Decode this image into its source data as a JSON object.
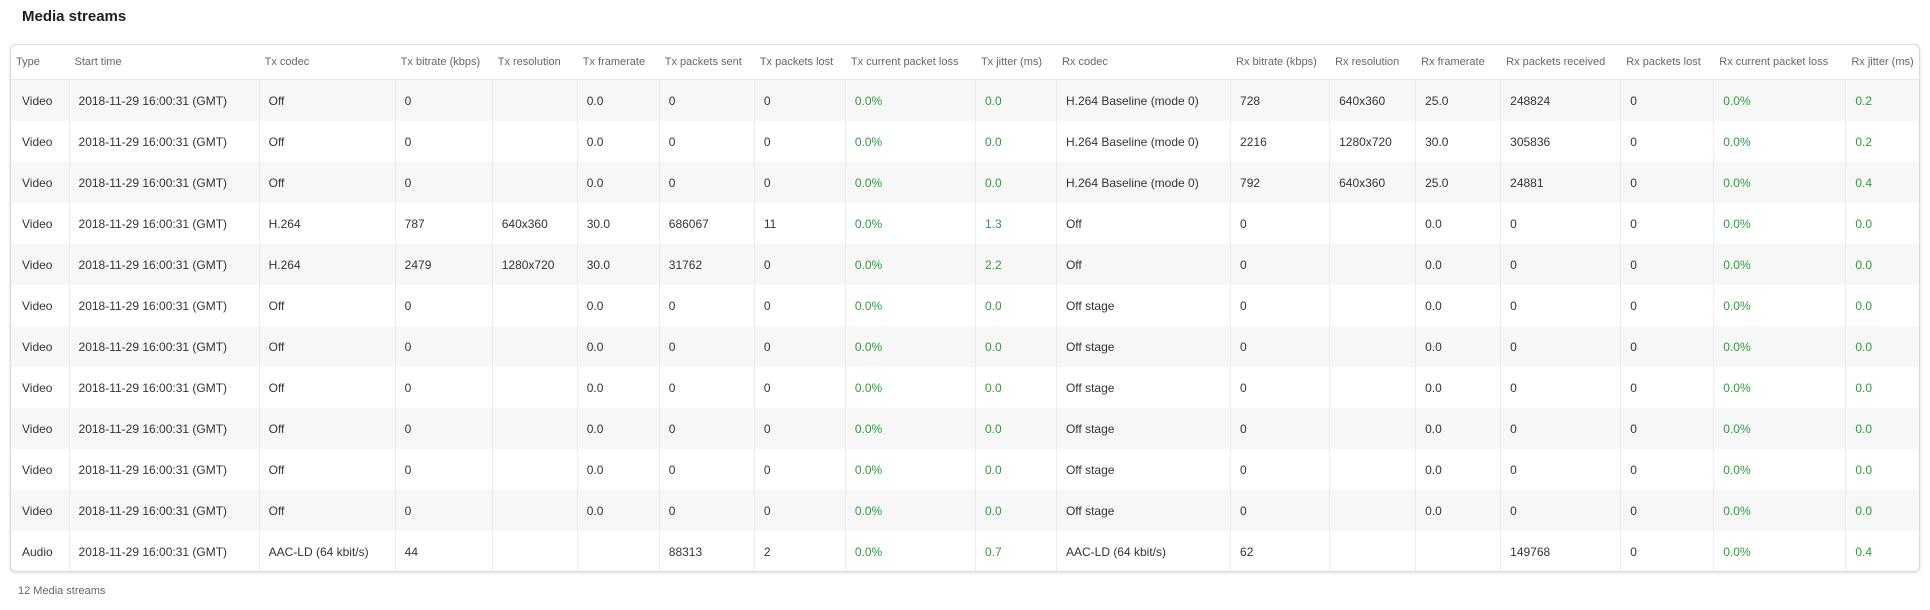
{
  "title": "Media streams",
  "footer": "12 Media streams",
  "colors": {
    "green_value": "#2e9b3e",
    "row_stripe": "#f7f7f7",
    "header_text": "#666666"
  },
  "columns": [
    "Type",
    "Start time",
    "Tx codec",
    "Tx bitrate (kbps)",
    "Tx resolution",
    "Tx framerate",
    "Tx packets sent",
    "Tx packets lost",
    "Tx current packet loss",
    "Tx jitter (ms)",
    "Rx codec",
    "Rx bitrate (kbps)",
    "Rx resolution",
    "Rx framerate",
    "Rx packets received",
    "Rx packets lost",
    "Rx current packet loss",
    "Rx jitter (ms)"
  ],
  "green_columns": [
    8,
    9,
    16,
    17
  ],
  "rows": [
    [
      "Video",
      "2018-11-29 16:00:31 (GMT)",
      "Off",
      "0",
      "",
      "0.0",
      "0",
      "0",
      "0.0%",
      "0.0",
      "H.264 Baseline (mode 0)",
      "728",
      "640x360",
      "25.0",
      "248824",
      "0",
      "0.0%",
      "0.2"
    ],
    [
      "Video",
      "2018-11-29 16:00:31 (GMT)",
      "Off",
      "0",
      "",
      "0.0",
      "0",
      "0",
      "0.0%",
      "0.0",
      "H.264 Baseline (mode 0)",
      "2216",
      "1280x720",
      "30.0",
      "305836",
      "0",
      "0.0%",
      "0.2"
    ],
    [
      "Video",
      "2018-11-29 16:00:31 (GMT)",
      "Off",
      "0",
      "",
      "0.0",
      "0",
      "0",
      "0.0%",
      "0.0",
      "H.264 Baseline (mode 0)",
      "792",
      "640x360",
      "25.0",
      "24881",
      "0",
      "0.0%",
      "0.4"
    ],
    [
      "Video",
      "2018-11-29 16:00:31 (GMT)",
      "H.264",
      "787",
      "640x360",
      "30.0",
      "686067",
      "11",
      "0.0%",
      "1.3",
      "Off",
      "0",
      "",
      "0.0",
      "0",
      "0",
      "0.0%",
      "0.0"
    ],
    [
      "Video",
      "2018-11-29 16:00:31 (GMT)",
      "H.264",
      "2479",
      "1280x720",
      "30.0",
      "31762",
      "0",
      "0.0%",
      "2.2",
      "Off",
      "0",
      "",
      "0.0",
      "0",
      "0",
      "0.0%",
      "0.0"
    ],
    [
      "Video",
      "2018-11-29 16:00:31 (GMT)",
      "Off",
      "0",
      "",
      "0.0",
      "0",
      "0",
      "0.0%",
      "0.0",
      "Off stage",
      "0",
      "",
      "0.0",
      "0",
      "0",
      "0.0%",
      "0.0"
    ],
    [
      "Video",
      "2018-11-29 16:00:31 (GMT)",
      "Off",
      "0",
      "",
      "0.0",
      "0",
      "0",
      "0.0%",
      "0.0",
      "Off stage",
      "0",
      "",
      "0.0",
      "0",
      "0",
      "0.0%",
      "0.0"
    ],
    [
      "Video",
      "2018-11-29 16:00:31 (GMT)",
      "Off",
      "0",
      "",
      "0.0",
      "0",
      "0",
      "0.0%",
      "0.0",
      "Off stage",
      "0",
      "",
      "0.0",
      "0",
      "0",
      "0.0%",
      "0.0"
    ],
    [
      "Video",
      "2018-11-29 16:00:31 (GMT)",
      "Off",
      "0",
      "",
      "0.0",
      "0",
      "0",
      "0.0%",
      "0.0",
      "Off stage",
      "0",
      "",
      "0.0",
      "0",
      "0",
      "0.0%",
      "0.0"
    ],
    [
      "Video",
      "2018-11-29 16:00:31 (GMT)",
      "Off",
      "0",
      "",
      "0.0",
      "0",
      "0",
      "0.0%",
      "0.0",
      "Off stage",
      "0",
      "",
      "0.0",
      "0",
      "0",
      "0.0%",
      "0.0"
    ],
    [
      "Video",
      "2018-11-29 16:00:31 (GMT)",
      "Off",
      "0",
      "",
      "0.0",
      "0",
      "0",
      "0.0%",
      "0.0",
      "Off stage",
      "0",
      "",
      "0.0",
      "0",
      "0",
      "0.0%",
      "0.0"
    ],
    [
      "Audio",
      "2018-11-29 16:00:31 (GMT)",
      "AAC-LD (64 kbit/s)",
      "44",
      "",
      "",
      "88313",
      "2",
      "0.0%",
      "0.7",
      "AAC-LD (64 kbit/s)",
      "62",
      "",
      "",
      "149768",
      "0",
      "0.0%",
      "0.4"
    ]
  ]
}
